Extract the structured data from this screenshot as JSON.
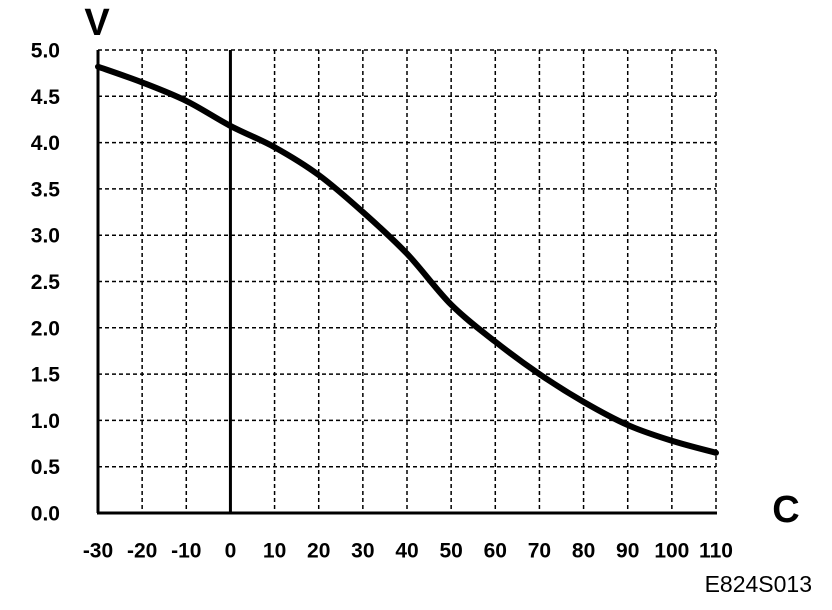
{
  "chart_data": {
    "type": "line",
    "y_label": "V",
    "x_label": "C",
    "figure_code": "E824S013",
    "x": [
      -30,
      -20,
      -10,
      0,
      10,
      20,
      30,
      40,
      50,
      60,
      70,
      80,
      90,
      100,
      110
    ],
    "series": [
      {
        "color": "#000000",
        "values": [
          4.82,
          4.65,
          4.45,
          4.18,
          3.95,
          3.65,
          3.25,
          2.8,
          2.25,
          1.85,
          1.5,
          1.2,
          0.95,
          0.78,
          0.65
        ]
      }
    ],
    "xlim": [
      -30,
      110
    ],
    "ylim": [
      0,
      5
    ],
    "xticks": [
      -30,
      -20,
      -10,
      0,
      10,
      20,
      30,
      40,
      50,
      60,
      70,
      80,
      90,
      100,
      110
    ],
    "yticks": [
      {
        "value": 0,
        "label": "0.0"
      },
      {
        "value": 0.5,
        "label": "0.5"
      },
      {
        "value": 1,
        "label": "1.0"
      },
      {
        "value": 1.5,
        "label": "1.5"
      },
      {
        "value": 2,
        "label": "2.0"
      },
      {
        "value": 2.5,
        "label": "2.5"
      },
      {
        "value": 3,
        "label": "3.0"
      },
      {
        "value": 3.5,
        "label": "3.5"
      },
      {
        "value": 4,
        "label": "4.0"
      },
      {
        "value": 4.5,
        "label": "4.5"
      },
      {
        "value": 5,
        "label": "5.0"
      }
    ],
    "grid": true
  }
}
